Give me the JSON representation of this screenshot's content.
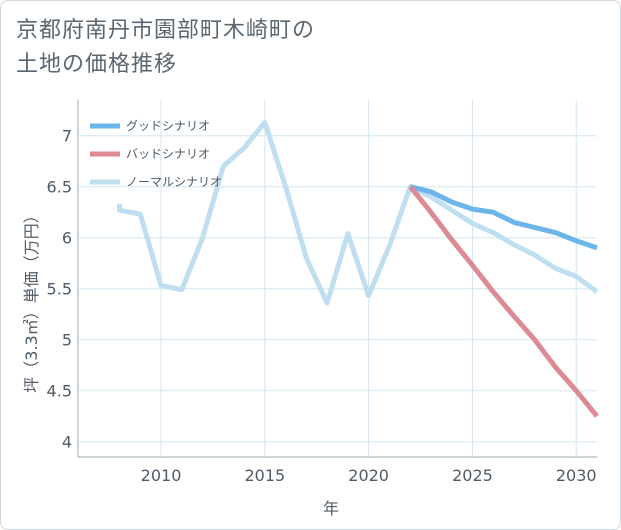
{
  "title_line1": "京都府南丹市園部町木崎町の",
  "title_line2": "土地の価格推移",
  "chart_data": {
    "type": "line",
    "xlabel": "年",
    "ylabel": "坪（3.3㎡）単価（万円）",
    "xlim": [
      2006,
      2031
    ],
    "ylim": [
      3.85,
      7.35
    ],
    "x_ticks": [
      2010,
      2015,
      2020,
      2025,
      2030
    ],
    "y_ticks": [
      4,
      4.5,
      5,
      5.5,
      6,
      6.5,
      7
    ],
    "legend_position": "top-left",
    "series": [
      {
        "name": "グッドシナリオ",
        "color": "#6bb5ea",
        "x": [
          2022,
          2023,
          2024,
          2025,
          2026,
          2027,
          2028,
          2029,
          2030,
          2031
        ],
        "y": [
          6.5,
          6.45,
          6.35,
          6.28,
          6.25,
          6.15,
          6.1,
          6.05,
          5.97,
          5.9
        ]
      },
      {
        "name": "バッドシナリオ",
        "color": "#dc8a93",
        "x": [
          2022,
          2023,
          2024,
          2025,
          2026,
          2027,
          2028,
          2029,
          2030,
          2031
        ],
        "y": [
          6.5,
          6.25,
          5.98,
          5.73,
          5.47,
          5.23,
          5.0,
          4.73,
          4.5,
          4.25
        ]
      },
      {
        "name": "ノーマルシナリオ",
        "color": "#bfdff0",
        "x": [
          2008,
          2008,
          2009,
          2010,
          2011,
          2012,
          2013,
          2014,
          2015,
          2016,
          2017,
          2018,
          2019,
          2020,
          2021,
          2022,
          2023,
          2024,
          2025,
          2026,
          2027,
          2028,
          2029,
          2030,
          2031
        ],
        "y": [
          6.33,
          6.27,
          6.23,
          5.53,
          5.49,
          6.0,
          6.7,
          6.88,
          7.13,
          6.5,
          5.8,
          5.36,
          6.04,
          5.43,
          5.92,
          6.5,
          6.4,
          6.27,
          6.14,
          6.05,
          5.93,
          5.83,
          5.7,
          5.62,
          5.47
        ]
      }
    ]
  }
}
